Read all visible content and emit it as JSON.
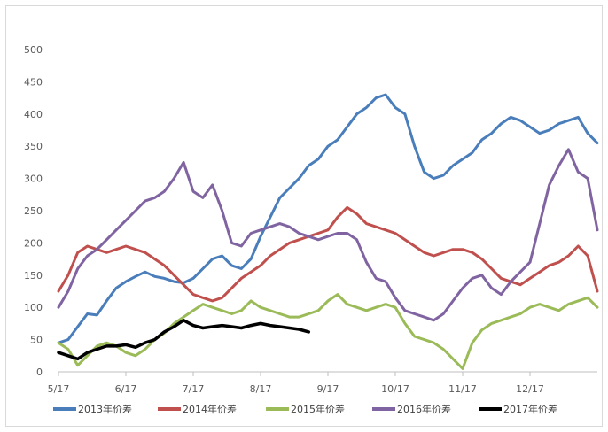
{
  "chart_data": {
    "type": "line",
    "title": "",
    "xlabel": "",
    "ylabel": "",
    "ylim": [
      0,
      500
    ],
    "yticks": [
      0,
      50,
      100,
      150,
      200,
      250,
      300,
      350,
      400,
      450,
      500
    ],
    "xticks": [
      "5/17",
      "6/17",
      "7/17",
      "8/17",
      "9/17",
      "10/17",
      "11/17",
      "12/17"
    ],
    "x_domain": [
      0,
      112
    ],
    "grid": false,
    "legend_position": "bottom",
    "series": [
      {
        "name": "2013年价差",
        "color": "#4a7ebb",
        "points": [
          [
            0,
            45
          ],
          [
            2,
            50
          ],
          [
            4,
            70
          ],
          [
            6,
            90
          ],
          [
            8,
            88
          ],
          [
            10,
            110
          ],
          [
            12,
            130
          ],
          [
            14,
            140
          ],
          [
            16,
            148
          ],
          [
            18,
            155
          ],
          [
            20,
            148
          ],
          [
            22,
            145
          ],
          [
            24,
            140
          ],
          [
            26,
            138
          ],
          [
            28,
            145
          ],
          [
            30,
            160
          ],
          [
            32,
            175
          ],
          [
            34,
            180
          ],
          [
            36,
            165
          ],
          [
            38,
            160
          ],
          [
            40,
            175
          ],
          [
            42,
            210
          ],
          [
            44,
            240
          ],
          [
            46,
            270
          ],
          [
            48,
            285
          ],
          [
            50,
            300
          ],
          [
            52,
            320
          ],
          [
            54,
            330
          ],
          [
            56,
            350
          ],
          [
            58,
            360
          ],
          [
            60,
            380
          ],
          [
            62,
            400
          ],
          [
            64,
            410
          ],
          [
            66,
            425
          ],
          [
            68,
            430
          ],
          [
            70,
            410
          ],
          [
            72,
            400
          ],
          [
            74,
            350
          ],
          [
            76,
            310
          ],
          [
            78,
            300
          ],
          [
            80,
            305
          ],
          [
            82,
            320
          ],
          [
            84,
            330
          ],
          [
            86,
            340
          ],
          [
            88,
            360
          ],
          [
            90,
            370
          ],
          [
            92,
            385
          ],
          [
            94,
            395
          ],
          [
            96,
            390
          ],
          [
            98,
            380
          ],
          [
            100,
            370
          ],
          [
            102,
            375
          ],
          [
            104,
            385
          ],
          [
            106,
            390
          ],
          [
            108,
            395
          ],
          [
            110,
            370
          ],
          [
            112,
            355
          ]
        ]
      },
      {
        "name": "2014年价差",
        "color": "#c0504d",
        "points": [
          [
            0,
            125
          ],
          [
            2,
            150
          ],
          [
            4,
            185
          ],
          [
            6,
            195
          ],
          [
            8,
            190
          ],
          [
            10,
            185
          ],
          [
            12,
            190
          ],
          [
            14,
            195
          ],
          [
            16,
            190
          ],
          [
            18,
            185
          ],
          [
            20,
            175
          ],
          [
            22,
            165
          ],
          [
            24,
            150
          ],
          [
            26,
            135
          ],
          [
            28,
            120
          ],
          [
            30,
            115
          ],
          [
            32,
            110
          ],
          [
            34,
            115
          ],
          [
            36,
            130
          ],
          [
            38,
            145
          ],
          [
            40,
            155
          ],
          [
            42,
            165
          ],
          [
            44,
            180
          ],
          [
            46,
            190
          ],
          [
            48,
            200
          ],
          [
            50,
            205
          ],
          [
            52,
            210
          ],
          [
            54,
            215
          ],
          [
            56,
            220
          ],
          [
            58,
            240
          ],
          [
            60,
            255
          ],
          [
            62,
            245
          ],
          [
            64,
            230
          ],
          [
            66,
            225
          ],
          [
            68,
            220
          ],
          [
            70,
            215
          ],
          [
            72,
            205
          ],
          [
            74,
            195
          ],
          [
            76,
            185
          ],
          [
            78,
            180
          ],
          [
            80,
            185
          ],
          [
            82,
            190
          ],
          [
            84,
            190
          ],
          [
            86,
            185
          ],
          [
            88,
            175
          ],
          [
            90,
            160
          ],
          [
            92,
            145
          ],
          [
            94,
            140
          ],
          [
            96,
            135
          ],
          [
            98,
            145
          ],
          [
            100,
            155
          ],
          [
            102,
            165
          ],
          [
            104,
            170
          ],
          [
            106,
            180
          ],
          [
            108,
            195
          ],
          [
            110,
            180
          ],
          [
            112,
            125
          ]
        ]
      },
      {
        "name": "2015年价差",
        "color": "#9bbb59",
        "points": [
          [
            0,
            45
          ],
          [
            2,
            35
          ],
          [
            4,
            10
          ],
          [
            6,
            25
          ],
          [
            8,
            40
          ],
          [
            10,
            45
          ],
          [
            12,
            40
          ],
          [
            14,
            30
          ],
          [
            16,
            25
          ],
          [
            18,
            35
          ],
          [
            20,
            50
          ],
          [
            22,
            60
          ],
          [
            24,
            75
          ],
          [
            26,
            85
          ],
          [
            28,
            95
          ],
          [
            30,
            105
          ],
          [
            32,
            100
          ],
          [
            34,
            95
          ],
          [
            36,
            90
          ],
          [
            38,
            95
          ],
          [
            40,
            110
          ],
          [
            42,
            100
          ],
          [
            44,
            95
          ],
          [
            46,
            90
          ],
          [
            48,
            85
          ],
          [
            50,
            85
          ],
          [
            52,
            90
          ],
          [
            54,
            95
          ],
          [
            56,
            110
          ],
          [
            58,
            120
          ],
          [
            60,
            105
          ],
          [
            62,
            100
          ],
          [
            64,
            95
          ],
          [
            66,
            100
          ],
          [
            68,
            105
          ],
          [
            70,
            100
          ],
          [
            72,
            75
          ],
          [
            74,
            55
          ],
          [
            76,
            50
          ],
          [
            78,
            45
          ],
          [
            80,
            35
          ],
          [
            82,
            20
          ],
          [
            84,
            5
          ],
          [
            86,
            45
          ],
          [
            88,
            65
          ],
          [
            90,
            75
          ],
          [
            92,
            80
          ],
          [
            94,
            85
          ],
          [
            96,
            90
          ],
          [
            98,
            100
          ],
          [
            100,
            105
          ],
          [
            102,
            100
          ],
          [
            104,
            95
          ],
          [
            106,
            105
          ],
          [
            108,
            110
          ],
          [
            110,
            115
          ],
          [
            112,
            100
          ]
        ]
      },
      {
        "name": "2016年价差",
        "color": "#8064a2",
        "points": [
          [
            0,
            100
          ],
          [
            2,
            125
          ],
          [
            4,
            160
          ],
          [
            6,
            180
          ],
          [
            8,
            190
          ],
          [
            10,
            205
          ],
          [
            12,
            220
          ],
          [
            14,
            235
          ],
          [
            16,
            250
          ],
          [
            18,
            265
          ],
          [
            20,
            270
          ],
          [
            22,
            280
          ],
          [
            24,
            300
          ],
          [
            26,
            325
          ],
          [
            28,
            280
          ],
          [
            30,
            270
          ],
          [
            32,
            290
          ],
          [
            34,
            250
          ],
          [
            36,
            200
          ],
          [
            38,
            195
          ],
          [
            40,
            215
          ],
          [
            42,
            220
          ],
          [
            44,
            225
          ],
          [
            46,
            230
          ],
          [
            48,
            225
          ],
          [
            50,
            215
          ],
          [
            52,
            210
          ],
          [
            54,
            205
          ],
          [
            56,
            210
          ],
          [
            58,
            215
          ],
          [
            60,
            215
          ],
          [
            62,
            205
          ],
          [
            64,
            170
          ],
          [
            66,
            145
          ],
          [
            68,
            140
          ],
          [
            70,
            115
          ],
          [
            72,
            95
          ],
          [
            74,
            90
          ],
          [
            76,
            85
          ],
          [
            78,
            80
          ],
          [
            80,
            90
          ],
          [
            82,
            110
          ],
          [
            84,
            130
          ],
          [
            86,
            145
          ],
          [
            88,
            150
          ],
          [
            90,
            130
          ],
          [
            92,
            120
          ],
          [
            94,
            140
          ],
          [
            96,
            155
          ],
          [
            98,
            170
          ],
          [
            100,
            230
          ],
          [
            102,
            290
          ],
          [
            104,
            320
          ],
          [
            106,
            345
          ],
          [
            108,
            310
          ],
          [
            110,
            300
          ],
          [
            112,
            220
          ]
        ]
      },
      {
        "name": "2017年价差",
        "color": "#000000",
        "points": [
          [
            0,
            30
          ],
          [
            2,
            25
          ],
          [
            4,
            20
          ],
          [
            6,
            30
          ],
          [
            8,
            35
          ],
          [
            10,
            40
          ],
          [
            12,
            40
          ],
          [
            14,
            42
          ],
          [
            16,
            38
          ],
          [
            18,
            45
          ],
          [
            20,
            50
          ],
          [
            22,
            62
          ],
          [
            24,
            70
          ],
          [
            26,
            80
          ],
          [
            28,
            72
          ],
          [
            30,
            68
          ],
          [
            32,
            70
          ],
          [
            34,
            72
          ],
          [
            36,
            70
          ],
          [
            38,
            68
          ],
          [
            40,
            72
          ],
          [
            42,
            75
          ],
          [
            44,
            72
          ],
          [
            46,
            70
          ],
          [
            48,
            68
          ],
          [
            50,
            66
          ],
          [
            52,
            62
          ]
        ]
      }
    ]
  }
}
